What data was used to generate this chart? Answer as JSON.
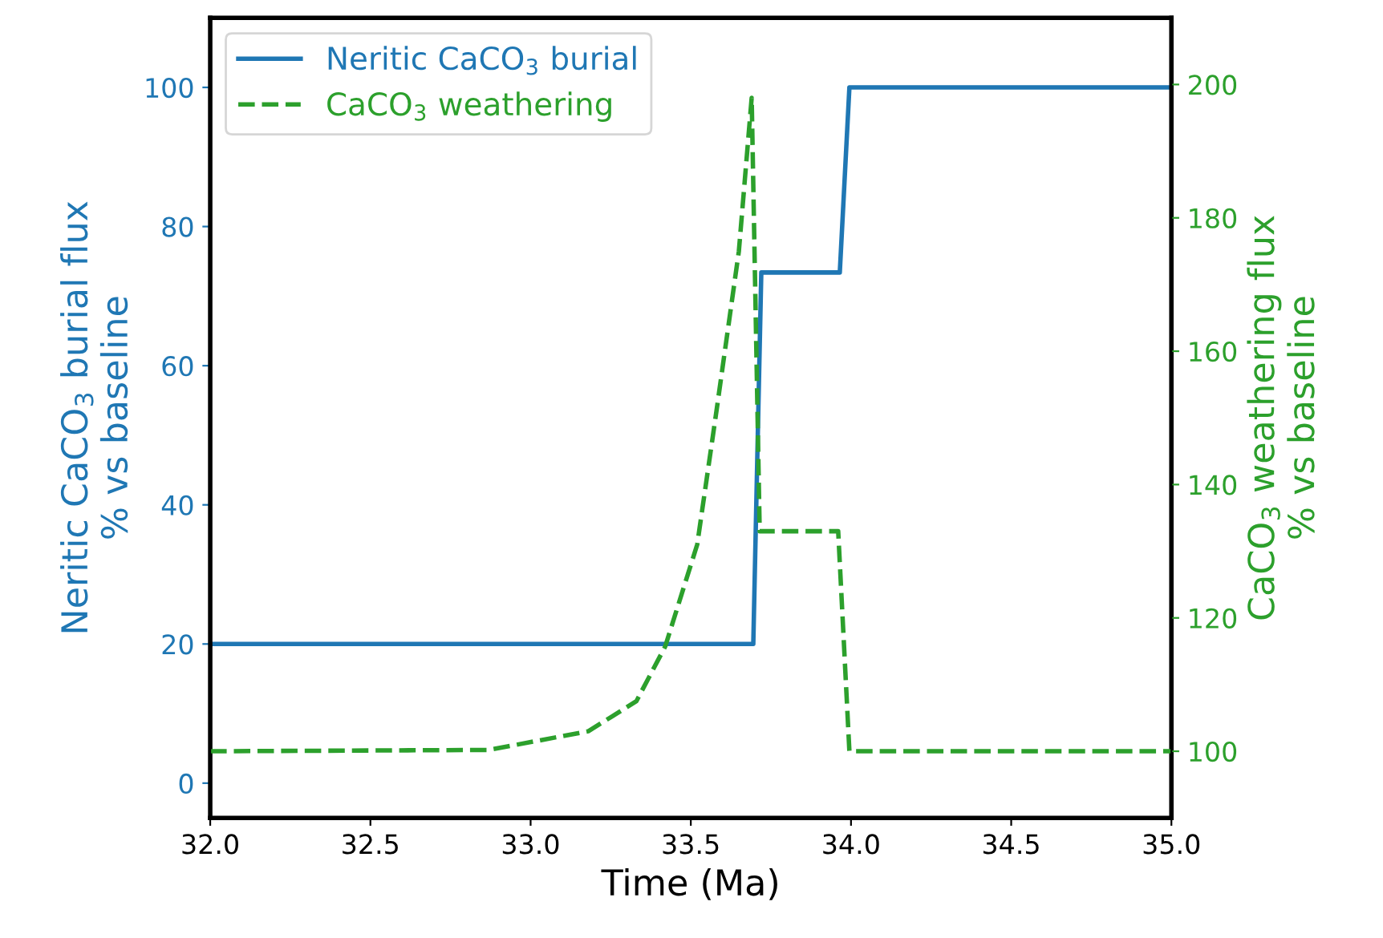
{
  "chart_data": {
    "type": "line",
    "xlabel": "Time (Ma)",
    "ylabel": "Neritic CaCO$_{3}$ burial flux\n% vs baseline",
    "y2label": "CaCO$_{3}$ weathering flux\n% vs baseline",
    "xlim": [
      32.0,
      35.0
    ],
    "xticks": [
      {
        "value": 32.0,
        "label": "32.0"
      },
      {
        "value": 32.5,
        "label": "32.5"
      },
      {
        "value": 33.0,
        "label": "33.0"
      },
      {
        "value": 33.5,
        "label": "33.5"
      },
      {
        "value": 34.0,
        "label": "34.0"
      },
      {
        "value": 34.5,
        "label": "34.5"
      },
      {
        "value": 35.0,
        "label": "35.0"
      }
    ],
    "ylim": [
      -5,
      110
    ],
    "yticks": [
      0,
      20,
      40,
      60,
      80,
      100
    ],
    "y2lim": [
      90,
      210
    ],
    "y2ticks": [
      100,
      120,
      140,
      160,
      180,
      200
    ],
    "legend": "top left",
    "grid": false,
    "series": [
      {
        "name": "Neritic CaCO$_{3}$ burial",
        "color": "#1f77b4",
        "line_style": "solid",
        "x": [
          32.0,
          33.695,
          33.72,
          33.965,
          33.995,
          35.0
        ],
        "values": [
          20,
          20,
          73.4,
          73.4,
          100,
          100
        ]
      },
      {
        "name": "CaCO$_{3}$ weathering",
        "color": "#2ca02c",
        "line_style": "dashed",
        "axis": "y2",
        "x": [
          32.0,
          32.87,
          33.18,
          33.33,
          33.42,
          33.52,
          33.58,
          33.65,
          33.69,
          33.715,
          33.96,
          33.995,
          35.0
        ],
        "values": [
          100,
          100.2,
          103,
          107.5,
          115.7,
          131,
          151,
          175,
          198,
          133,
          133,
          100,
          100
        ]
      }
    ]
  }
}
